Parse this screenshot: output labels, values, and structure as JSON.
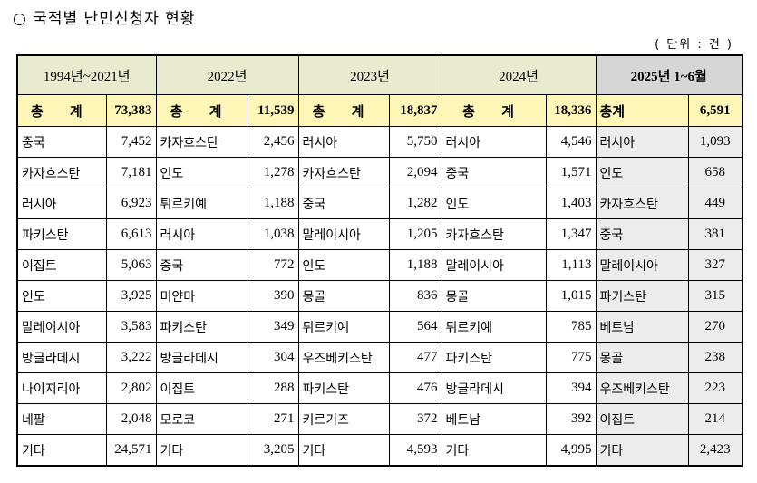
{
  "title": "○ 국적별 난민신청자 현황",
  "unit": "( 단위 : 건 )",
  "periods": [
    "1994년~2021년",
    "2022년",
    "2023년",
    "2024년",
    "2025년 1~6월"
  ],
  "totals": [
    {
      "label": "총 계",
      "value": "73,383"
    },
    {
      "label": "총 계",
      "value": "11,539"
    },
    {
      "label": "총 계",
      "value": "18,837"
    },
    {
      "label": "총 계",
      "value": "18,336"
    },
    {
      "label": "총계",
      "value": "6,591"
    }
  ],
  "rows": [
    [
      [
        "중국",
        "7,452"
      ],
      [
        "카자흐스탄",
        "2,456"
      ],
      [
        "러시아",
        "5,750"
      ],
      [
        "러시아",
        "4,546"
      ],
      [
        "러시아",
        "1,093"
      ]
    ],
    [
      [
        "카자흐스탄",
        "7,181"
      ],
      [
        "인도",
        "1,278"
      ],
      [
        "카자흐스탄",
        "2,094"
      ],
      [
        "중국",
        "1,571"
      ],
      [
        "인도",
        "658"
      ]
    ],
    [
      [
        "러시아",
        "6,923"
      ],
      [
        "튀르키예",
        "1,188"
      ],
      [
        "중국",
        "1,282"
      ],
      [
        "인도",
        "1,403"
      ],
      [
        "카자흐스탄",
        "449"
      ]
    ],
    [
      [
        "파키스탄",
        "6,613"
      ],
      [
        "러시아",
        "1,038"
      ],
      [
        "말레이시아",
        "1,205"
      ],
      [
        "카자흐스탄",
        "1,347"
      ],
      [
        "중국",
        "381"
      ]
    ],
    [
      [
        "이집트",
        "5,063"
      ],
      [
        "중국",
        "772"
      ],
      [
        "인도",
        "1,188"
      ],
      [
        "말레이시아",
        "1,113"
      ],
      [
        "말레이시아",
        "327"
      ]
    ],
    [
      [
        "인도",
        "3,925"
      ],
      [
        "미얀마",
        "390"
      ],
      [
        "몽골",
        "836"
      ],
      [
        "몽골",
        "1,015"
      ],
      [
        "파키스탄",
        "315"
      ]
    ],
    [
      [
        "말레이시아",
        "3,583"
      ],
      [
        "파키스탄",
        "349"
      ],
      [
        "튀르키예",
        "564"
      ],
      [
        "튀르키예",
        "785"
      ],
      [
        "베트남",
        "270"
      ]
    ],
    [
      [
        "방글라데시",
        "3,222"
      ],
      [
        "방글라데시",
        "304"
      ],
      [
        "우즈베키스탄",
        "477"
      ],
      [
        "파키스탄",
        "775"
      ],
      [
        "몽골",
        "238"
      ]
    ],
    [
      [
        "나이지리아",
        "2,802"
      ],
      [
        "이집트",
        "288"
      ],
      [
        "파키스탄",
        "476"
      ],
      [
        "방글라데시",
        "394"
      ],
      [
        "우즈베키스탄",
        "223"
      ]
    ],
    [
      [
        "네팔",
        "2,048"
      ],
      [
        "모로코",
        "271"
      ],
      [
        "키르기즈",
        "372"
      ],
      [
        "베트남",
        "392"
      ],
      [
        "이집트",
        "214"
      ]
    ],
    [
      [
        "기타",
        "24,571"
      ],
      [
        "기타",
        "3,205"
      ],
      [
        "기타",
        "4,593"
      ],
      [
        "기타",
        "4,995"
      ],
      [
        "기타",
        "2,423"
      ]
    ]
  ]
}
